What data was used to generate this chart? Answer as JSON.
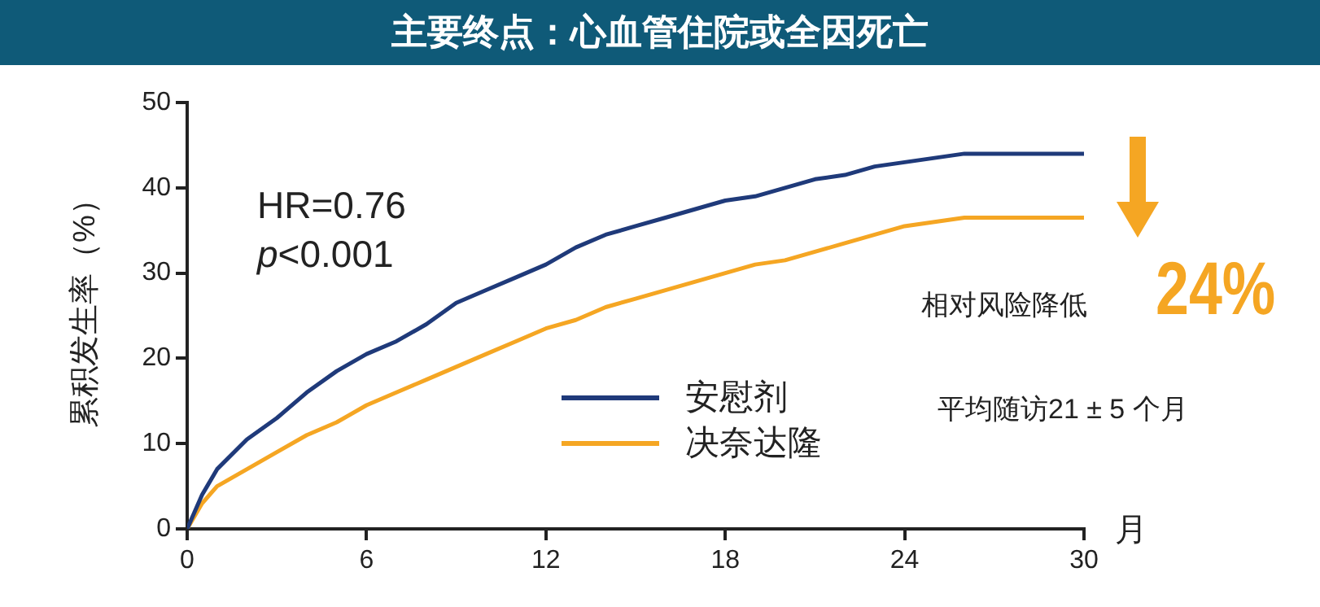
{
  "chart_data": {
    "type": "line",
    "title": "主要终点：心血管住院或全因死亡",
    "xlabel": "月",
    "ylabel": "累积发生率（%）",
    "x": [
      0,
      0.5,
      1,
      2,
      3,
      4,
      5,
      6,
      7,
      8,
      9,
      10,
      11,
      12,
      13,
      14,
      15,
      16,
      17,
      18,
      19,
      20,
      21,
      22,
      23,
      24,
      25,
      26,
      27,
      30
    ],
    "series": [
      {
        "name": "安慰剂",
        "color": "#1f3a7a",
        "values": [
          0,
          4,
          7,
          10.5,
          13,
          16,
          18.5,
          20.5,
          22,
          24,
          26.5,
          28,
          29.5,
          31,
          33,
          34.5,
          35.5,
          36.5,
          37.5,
          38.5,
          39,
          40,
          41,
          41.5,
          42.5,
          43,
          43.5,
          44,
          44,
          44
        ]
      },
      {
        "name": "决奈达隆",
        "color": "#f5a623",
        "values": [
          0,
          3,
          5,
          7,
          9,
          11,
          12.5,
          14.5,
          16,
          17.5,
          19,
          20.5,
          22,
          23.5,
          24.5,
          26,
          27,
          28,
          29,
          30,
          31,
          31.5,
          32.5,
          33.5,
          34.5,
          35.5,
          36,
          36.5,
          36.5,
          36.5
        ]
      }
    ],
    "xlim": [
      0,
      30
    ],
    "xticks": [
      0,
      6,
      12,
      18,
      24,
      30
    ],
    "ylim": [
      0,
      50
    ],
    "yticks": [
      0,
      10,
      20,
      30,
      40,
      50
    ],
    "grid": false,
    "legend": "bottom right",
    "marker": "none",
    "line_style": "solid",
    "annotations": [
      "HR=0.76",
      "p<0.001",
      "相对风险降低",
      "24%",
      "平均随访21 ± 5 个月"
    ]
  }
}
